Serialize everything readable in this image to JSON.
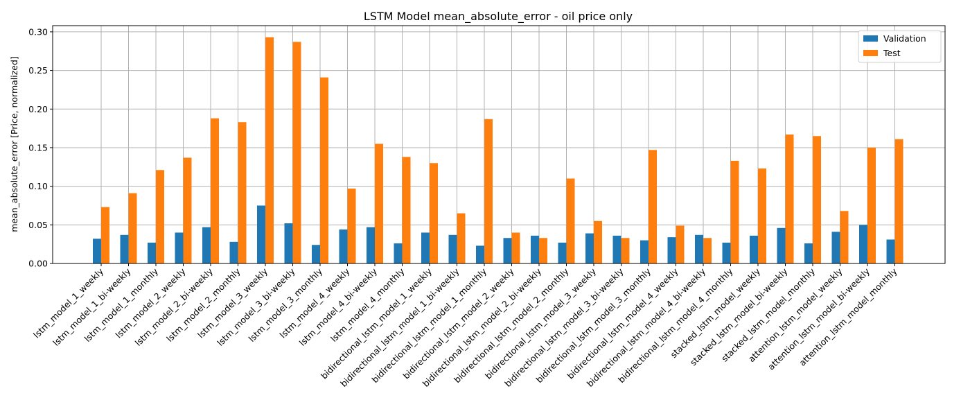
{
  "chart_data": {
    "type": "bar",
    "title": "LSTM Model mean_absolute_error - oil price only",
    "xlabel": "",
    "ylabel": "mean_absolute_error [Price, normalized]",
    "ylim": [
      0,
      0.308
    ],
    "yticks": [
      "0.00",
      "0.05",
      "0.10",
      "0.15",
      "0.20",
      "0.25",
      "0.30"
    ],
    "grid": true,
    "legend": "top-right",
    "categories": [
      "lstm_model_1_weekly",
      "lstm_model_1_bi-weekly",
      "lstm_model_1_monthly",
      "lstm_model_2_weekly",
      "lstm_model_2_bi-weekly",
      "lstm_model_2_monthly",
      "lstm_model_3_weekly",
      "lstm_model_3_bi-weekly",
      "lstm_model_3_monthly",
      "lstm_model_4_weekly",
      "lstm_model_4_bi-weekly",
      "lstm_model_4_monthly",
      "bidirectional_lstm_model_1_weekly",
      "bidirectional_lstm_model_1_bi-weekly",
      "bidirectional_lstm_model_1_monthly",
      "bidirectional_lstm_model_2_weekly",
      "bidirectional_lstm_model_2_bi-weekly",
      "bidirectional_lstm_model_2_monthly",
      "bidirectional_lstm_model_3_weekly",
      "bidirectional_lstm_model_3_bi-weekly",
      "bidirectional_lstm_model_3_monthly",
      "bidirectional_lstm_model_4_weekly",
      "bidirectional_lstm_model_4_bi-weekly",
      "bidirectional_lstm_model_4_monthly",
      "stacked_lstm_model_weekly",
      "stacked_lstm_model_bi-weekly",
      "stacked_lstm_model_monthly",
      "attention_lstm_model_weekly",
      "attention_lstm_model_bi-weekly",
      "attention_lstm_model_monthly"
    ],
    "series": [
      {
        "name": "Validation",
        "color": "#1f77b4",
        "values": [
          0.032,
          0.037,
          0.027,
          0.04,
          0.047,
          0.028,
          0.075,
          0.052,
          0.024,
          0.044,
          0.047,
          0.026,
          0.04,
          0.037,
          0.023,
          0.033,
          0.036,
          0.027,
          0.039,
          0.036,
          0.03,
          0.034,
          0.037,
          0.027,
          0.036,
          0.046,
          0.026,
          0.041,
          0.05,
          0.031
        ]
      },
      {
        "name": "Test",
        "color": "#ff7f0e",
        "values": [
          0.073,
          0.091,
          0.121,
          0.137,
          0.188,
          0.183,
          0.293,
          0.287,
          0.241,
          0.097,
          0.155,
          0.138,
          0.13,
          0.065,
          0.187,
          0.04,
          0.033,
          0.11,
          0.055,
          0.033,
          0.147,
          0.049,
          0.033,
          0.133,
          0.123,
          0.167,
          0.165,
          0.068,
          0.15,
          0.161
        ]
      }
    ]
  }
}
